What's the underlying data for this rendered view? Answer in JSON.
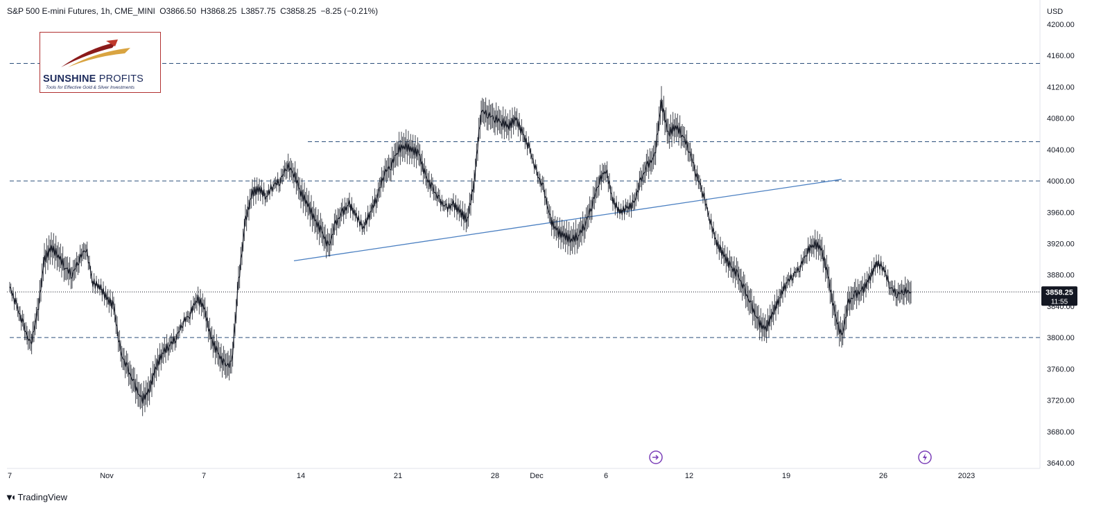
{
  "header": {
    "symbol": "S&P 500 E-mini Futures, 1h, CME_MINI",
    "open": "O3866.50",
    "high": "H3868.25",
    "low": "L3857.75",
    "close": "C3858.25",
    "change": "−8.25 (−0.21%)"
  },
  "logo": {
    "brand_bold": "SUNSHINE",
    "brand_light": "PROFITS",
    "tagline": "Tools for Effective Gold & Silver Investments"
  },
  "footer": {
    "brand": "TradingView"
  },
  "axis": {
    "currency": "USD",
    "last_price": "3858.25",
    "countdown": "11:55"
  },
  "colors": {
    "candle": "#131722",
    "level_line": "#2a4d7a",
    "trend_line": "#4a7fc1",
    "price_tag_bg": "#131722",
    "event_icon": "#7b3fb8"
  },
  "chart_data": {
    "type": "line",
    "ylim": [
      3635,
      4210
    ],
    "y_ticks": [
      3640,
      3680,
      3720,
      3760,
      3800,
      3840,
      3880,
      3920,
      3960,
      4000,
      4040,
      4080,
      4120,
      4160,
      4200
    ],
    "x_ticks": [
      {
        "label": "7",
        "day": 0
      },
      {
        "label": "Nov",
        "day": 7
      },
      {
        "label": "7",
        "day": 14
      },
      {
        "label": "14",
        "day": 21
      },
      {
        "label": "21",
        "day": 28
      },
      {
        "label": "28",
        "day": 35
      },
      {
        "label": "Dec",
        "day": 38
      },
      {
        "label": "6",
        "day": 43
      },
      {
        "label": "12",
        "day": 49
      },
      {
        "label": "19",
        "day": 56
      },
      {
        "label": "26",
        "day": 63
      },
      {
        "label": "2023",
        "day": 69
      }
    ],
    "horizontal_levels": [
      {
        "price": 4150,
        "from_day": 0
      },
      {
        "price": 4050,
        "from_day": 21.5
      },
      {
        "price": 4000,
        "from_day": 0
      },
      {
        "price": 3800,
        "from_day": 0
      }
    ],
    "trend_line": [
      {
        "day": 20.5,
        "price": 3898
      },
      {
        "day": 60,
        "price": 4002
      }
    ],
    "last_price": 3858.25,
    "series": [
      {
        "x": [
          0,
          0.5,
          1,
          1.5,
          2,
          2.5,
          3,
          3.5,
          4,
          4.5,
          5,
          5.5,
          6,
          6.5,
          7,
          7.5,
          8,
          8.5,
          9,
          9.5,
          10,
          10.5,
          11,
          11.5,
          12,
          12.5,
          13,
          13.5,
          14,
          14.5,
          15,
          15.5,
          16,
          16.5,
          17,
          17.5,
          18,
          18.5,
          19,
          19.5,
          20,
          20.5,
          21,
          21.5,
          22,
          22.5,
          23,
          23.5,
          24,
          24.5,
          25,
          25.5,
          26,
          26.5,
          27,
          27.5,
          28,
          28.5,
          29,
          29.5,
          30,
          30.5,
          31,
          31.5,
          32,
          32.5,
          33,
          33.5,
          34,
          34.5,
          35,
          35.5,
          36,
          36.5,
          37,
          37.5,
          38,
          38.5,
          39,
          39.5,
          40,
          40.5,
          41,
          41.5,
          42,
          42.5,
          43,
          43.5,
          44,
          44.5,
          45,
          45.5,
          46,
          46.5,
          47,
          47.5,
          48,
          48.5,
          49,
          49.5,
          50,
          50.5,
          51,
          51.5,
          52,
          52.5,
          53,
          53.5,
          54,
          54.5,
          55,
          55.5,
          56,
          56.5,
          57,
          57.5,
          58,
          58.5,
          59,
          59.5,
          60,
          60.5,
          61,
          61.5,
          62,
          62.5,
          63,
          63.5,
          64,
          64.5,
          65
        ],
        "y": [
          3865,
          3840,
          3815,
          3790,
          3830,
          3900,
          3915,
          3905,
          3890,
          3880,
          3900,
          3915,
          3870,
          3865,
          3850,
          3840,
          3780,
          3760,
          3740,
          3720,
          3730,
          3760,
          3780,
          3790,
          3800,
          3820,
          3830,
          3850,
          3840,
          3800,
          3780,
          3765,
          3765,
          3870,
          3950,
          3985,
          3990,
          3980,
          3995,
          4000,
          4020,
          4010,
          3985,
          3970,
          3950,
          3935,
          3915,
          3945,
          3960,
          3970,
          3955,
          3940,
          3960,
          3980,
          4010,
          4020,
          4040,
          4045,
          4040,
          4035,
          4005,
          3990,
          3975,
          3965,
          3970,
          3960,
          3950,
          4000,
          4090,
          4085,
          4080,
          4075,
          4070,
          4080,
          4060,
          4040,
          4010,
          3990,
          3950,
          3935,
          3930,
          3925,
          3930,
          3945,
          3970,
          4000,
          4015,
          3975,
          3960,
          3965,
          3970,
          4000,
          4020,
          4030,
          4100,
          4060,
          4070,
          4060,
          4040,
          4010,
          3985,
          3950,
          3920,
          3905,
          3890,
          3880,
          3860,
          3840,
          3820,
          3810,
          3830,
          3850,
          3870,
          3880,
          3890,
          3910,
          3920,
          3915,
          3880,
          3830,
          3800,
          3845,
          3855,
          3860,
          3875,
          3895,
          3890,
          3865,
          3855,
          3860,
          3858
        ]
      }
    ]
  }
}
